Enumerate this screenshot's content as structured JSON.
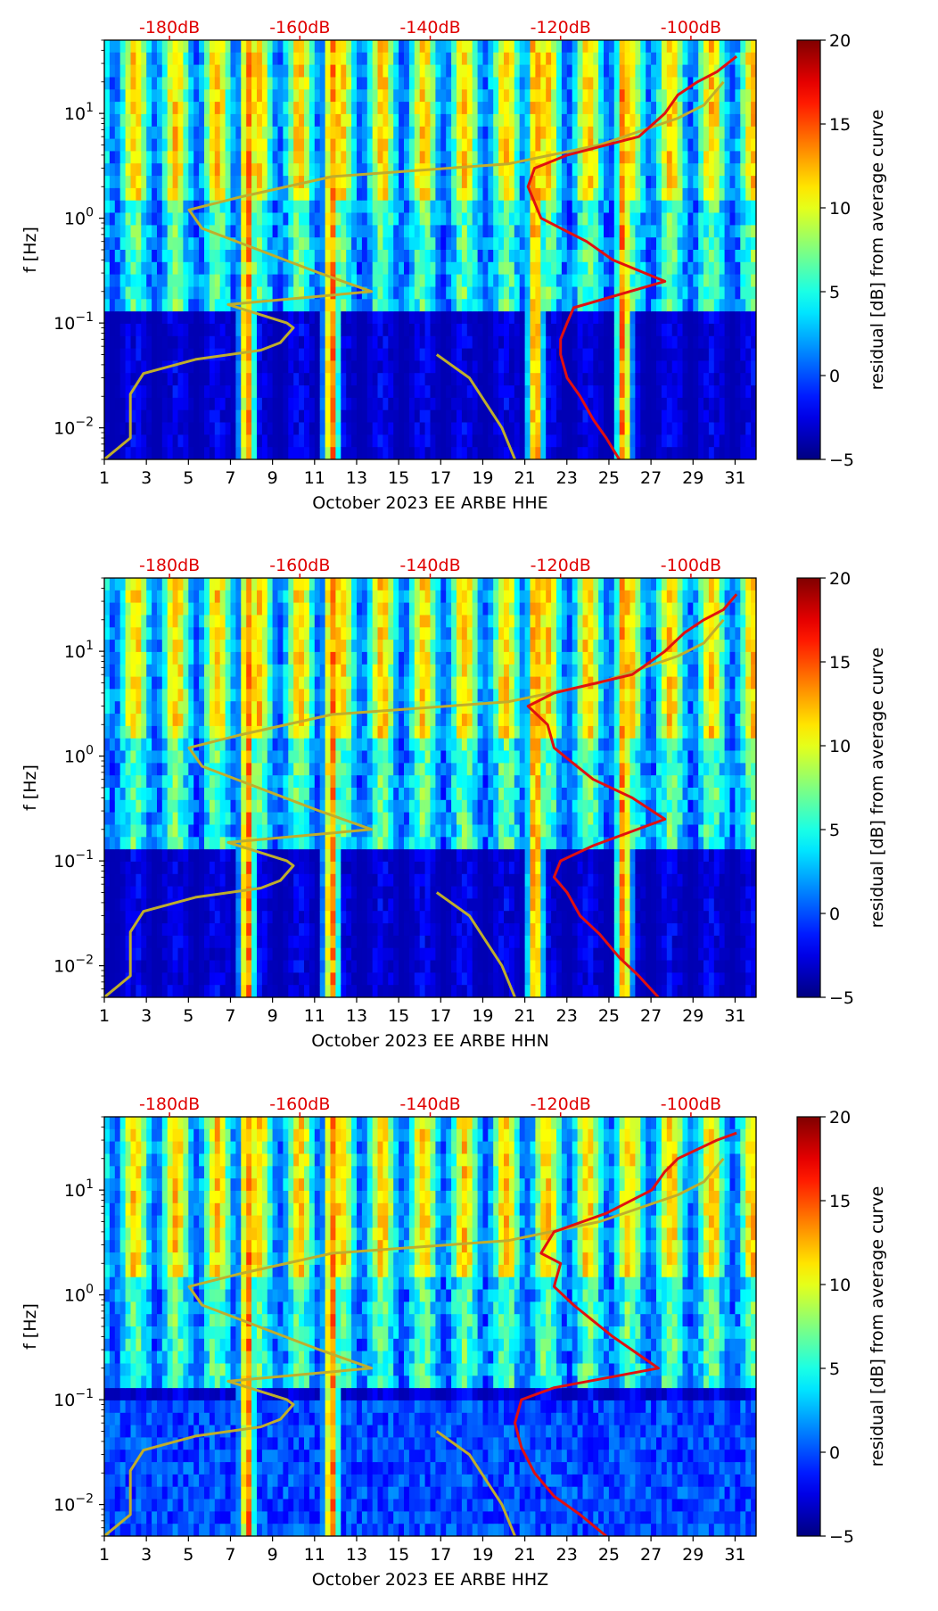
{
  "colors": {
    "noise_model": "#bfae2c",
    "mode_curve": "#e01010",
    "top_labels": "#e00000"
  },
  "colormap": "jet",
  "chart_data": [
    {
      "type": "heatmap",
      "channel": "HHE",
      "xlabel": "October 2023 EE ARBE  HHE",
      "ylabel": "f [Hz]",
      "x_ticks": [
        "1",
        "3",
        "5",
        "7",
        "9",
        "11",
        "13",
        "15",
        "17",
        "19",
        "21",
        "23",
        "25",
        "27",
        "29",
        "31"
      ],
      "xlim": [
        1,
        32
      ],
      "y_ticks": [
        {
          "value": 0.01,
          "base": "10",
          "exp": "−2"
        },
        {
          "value": 0.1,
          "base": "10",
          "exp": "−1"
        },
        {
          "value": 1,
          "base": "10",
          "exp": "0"
        },
        {
          "value": 10,
          "base": "10",
          "exp": "1"
        }
      ],
      "ylim": [
        0.005,
        50
      ],
      "top_axis_labels": [
        "-180dB",
        "-160dB",
        "-140dB",
        "-120dB",
        "-100dB"
      ],
      "top_axis_values": [
        -180,
        -160,
        -140,
        -120,
        -100
      ],
      "top_axis_range": [
        -190,
        -90
      ],
      "colorbar": {
        "label": "residual [dB] from average curve",
        "ticks": [
          "20",
          "15",
          "10",
          "5",
          "0",
          "−5"
        ],
        "range": [
          -5,
          20
        ]
      },
      "noise_model_curve_db_vs_hz": [
        [
          -190,
          0.005
        ],
        [
          -186,
          0.008
        ],
        [
          -186,
          0.015
        ],
        [
          -186,
          0.021
        ],
        [
          -184,
          0.033
        ],
        [
          -176,
          0.045
        ],
        [
          -166,
          0.055
        ],
        [
          -163,
          0.065
        ],
        [
          -161,
          0.09
        ],
        [
          -162,
          0.1
        ],
        [
          -171,
          0.15
        ],
        [
          -149,
          0.2
        ],
        [
          -157,
          0.3
        ],
        [
          -175,
          0.8
        ],
        [
          -177,
          1.2
        ],
        [
          -169,
          1.6
        ],
        [
          -155,
          2.5
        ],
        [
          -128,
          3.3
        ],
        [
          -114,
          5.0
        ],
        [
          -102,
          9.0
        ],
        [
          -98,
          12
        ],
        [
          -95,
          20
        ]
      ],
      "noise_model_curve_2_db_vs_hz": [
        [
          -139,
          0.05
        ],
        [
          -134,
          0.03
        ],
        [
          -129,
          0.01
        ],
        [
          -127,
          0.005
        ]
      ],
      "mode_curve_db_vs_hz": [
        [
          -111,
          0.005
        ],
        [
          -113,
          0.008
        ],
        [
          -115,
          0.012
        ],
        [
          -117,
          0.02
        ],
        [
          -119,
          0.03
        ],
        [
          -120,
          0.05
        ],
        [
          -120,
          0.07
        ],
        [
          -119,
          0.1
        ],
        [
          -118,
          0.14
        ],
        [
          -104,
          0.25
        ],
        [
          -112,
          0.4
        ],
        [
          -116,
          0.6
        ],
        [
          -123,
          1.0
        ],
        [
          -125,
          2.0
        ],
        [
          -124,
          3.0
        ],
        [
          -119,
          4.0
        ],
        [
          -108,
          6.0
        ],
        [
          -104,
          10
        ],
        [
          -102,
          15
        ],
        [
          -99,
          20
        ],
        [
          -96,
          25
        ],
        [
          -93,
          35
        ]
      ],
      "vertical_band_days": [
        7.8,
        11.8,
        21.5,
        25.7
      ]
    },
    {
      "type": "heatmap",
      "channel": "HHN",
      "xlabel": "October 2023 EE ARBE  HHN",
      "ylabel": "f [Hz]",
      "x_ticks": [
        "1",
        "3",
        "5",
        "7",
        "9",
        "11",
        "13",
        "15",
        "17",
        "19",
        "21",
        "23",
        "25",
        "27",
        "29",
        "31"
      ],
      "xlim": [
        1,
        32
      ],
      "y_ticks": [
        {
          "value": 0.01,
          "base": "10",
          "exp": "−2"
        },
        {
          "value": 0.1,
          "base": "10",
          "exp": "−1"
        },
        {
          "value": 1,
          "base": "10",
          "exp": "0"
        },
        {
          "value": 10,
          "base": "10",
          "exp": "1"
        }
      ],
      "ylim": [
        0.005,
        50
      ],
      "top_axis_labels": [
        "-180dB",
        "-160dB",
        "-140dB",
        "-120dB",
        "-100dB"
      ],
      "top_axis_values": [
        -180,
        -160,
        -140,
        -120,
        -100
      ],
      "top_axis_range": [
        -190,
        -90
      ],
      "colorbar": {
        "label": "residual [dB] from average curve",
        "ticks": [
          "20",
          "15",
          "10",
          "5",
          "0",
          "−5"
        ],
        "range": [
          -5,
          20
        ]
      },
      "noise_model_curve_db_vs_hz": [
        [
          -190,
          0.005
        ],
        [
          -186,
          0.008
        ],
        [
          -186,
          0.015
        ],
        [
          -186,
          0.021
        ],
        [
          -184,
          0.033
        ],
        [
          -176,
          0.045
        ],
        [
          -166,
          0.055
        ],
        [
          -163,
          0.065
        ],
        [
          -161,
          0.09
        ],
        [
          -162,
          0.1
        ],
        [
          -171,
          0.15
        ],
        [
          -149,
          0.2
        ],
        [
          -157,
          0.3
        ],
        [
          -175,
          0.8
        ],
        [
          -177,
          1.2
        ],
        [
          -169,
          1.6
        ],
        [
          -155,
          2.5
        ],
        [
          -128,
          3.3
        ],
        [
          -114,
          5.0
        ],
        [
          -102,
          9.0
        ],
        [
          -98,
          12
        ],
        [
          -95,
          20
        ]
      ],
      "noise_model_curve_2_db_vs_hz": [
        [
          -139,
          0.05
        ],
        [
          -134,
          0.03
        ],
        [
          -129,
          0.01
        ],
        [
          -127,
          0.005
        ]
      ],
      "mode_curve_db_vs_hz": [
        [
          -105,
          0.005
        ],
        [
          -108,
          0.008
        ],
        [
          -111,
          0.012
        ],
        [
          -114,
          0.02
        ],
        [
          -117,
          0.03
        ],
        [
          -119,
          0.05
        ],
        [
          -121,
          0.07
        ],
        [
          -120,
          0.1
        ],
        [
          -115,
          0.14
        ],
        [
          -104,
          0.25
        ],
        [
          -109,
          0.4
        ],
        [
          -115,
          0.6
        ],
        [
          -121,
          1.2
        ],
        [
          -122,
          2.0
        ],
        [
          -125,
          3.0
        ],
        [
          -121,
          4.0
        ],
        [
          -109,
          6.0
        ],
        [
          -104,
          10
        ],
        [
          -101,
          15
        ],
        [
          -98,
          20
        ],
        [
          -95,
          25
        ],
        [
          -93,
          35
        ]
      ],
      "vertical_band_days": [
        7.8,
        11.8,
        21.5,
        25.7
      ]
    },
    {
      "type": "heatmap",
      "channel": "HHZ",
      "xlabel": "October 2023 EE ARBE  HHZ",
      "ylabel": "f [Hz]",
      "x_ticks": [
        "1",
        "3",
        "5",
        "7",
        "9",
        "11",
        "13",
        "15",
        "17",
        "19",
        "21",
        "23",
        "25",
        "27",
        "29",
        "31"
      ],
      "xlim": [
        1,
        32
      ],
      "y_ticks": [
        {
          "value": 0.01,
          "base": "10",
          "exp": "−2"
        },
        {
          "value": 0.1,
          "base": "10",
          "exp": "−1"
        },
        {
          "value": 1,
          "base": "10",
          "exp": "0"
        },
        {
          "value": 10,
          "base": "10",
          "exp": "1"
        }
      ],
      "ylim": [
        0.005,
        50
      ],
      "top_axis_labels": [
        "-180dB",
        "-160dB",
        "-140dB",
        "-120dB",
        "-100dB"
      ],
      "top_axis_values": [
        -180,
        -160,
        -140,
        -120,
        -100
      ],
      "top_axis_range": [
        -190,
        -90
      ],
      "colorbar": {
        "label": "residual [dB] from average curve",
        "ticks": [
          "20",
          "15",
          "10",
          "5",
          "0",
          "−5"
        ],
        "range": [
          -5,
          20
        ]
      },
      "noise_model_curve_db_vs_hz": [
        [
          -190,
          0.005
        ],
        [
          -186,
          0.008
        ],
        [
          -186,
          0.015
        ],
        [
          -186,
          0.021
        ],
        [
          -184,
          0.033
        ],
        [
          -176,
          0.045
        ],
        [
          -166,
          0.055
        ],
        [
          -163,
          0.065
        ],
        [
          -161,
          0.09
        ],
        [
          -162,
          0.1
        ],
        [
          -171,
          0.15
        ],
        [
          -149,
          0.2
        ],
        [
          -157,
          0.3
        ],
        [
          -175,
          0.8
        ],
        [
          -177,
          1.2
        ],
        [
          -169,
          1.6
        ],
        [
          -155,
          2.5
        ],
        [
          -128,
          3.3
        ],
        [
          -114,
          5.0
        ],
        [
          -102,
          9.0
        ],
        [
          -98,
          12
        ],
        [
          -95,
          20
        ]
      ],
      "noise_model_curve_2_db_vs_hz": [
        [
          -139,
          0.05
        ],
        [
          -134,
          0.03
        ],
        [
          -129,
          0.01
        ],
        [
          -127,
          0.005
        ]
      ],
      "mode_curve_db_vs_hz": [
        [
          -113,
          0.005
        ],
        [
          -117,
          0.008
        ],
        [
          -121,
          0.012
        ],
        [
          -124,
          0.02
        ],
        [
          -126,
          0.035
        ],
        [
          -127,
          0.06
        ],
        [
          -126,
          0.1
        ],
        [
          -121,
          0.13
        ],
        [
          -105,
          0.2
        ],
        [
          -112,
          0.4
        ],
        [
          -118,
          0.8
        ],
        [
          -121,
          1.2
        ],
        [
          -120,
          2.0
        ],
        [
          -123,
          2.5
        ],
        [
          -121,
          4.0
        ],
        [
          -113,
          6.0
        ],
        [
          -106,
          10
        ],
        [
          -104,
          15
        ],
        [
          -102,
          20
        ],
        [
          -96,
          30
        ],
        [
          -93,
          35
        ]
      ],
      "vertical_band_days": [
        7.8,
        11.8
      ]
    }
  ]
}
